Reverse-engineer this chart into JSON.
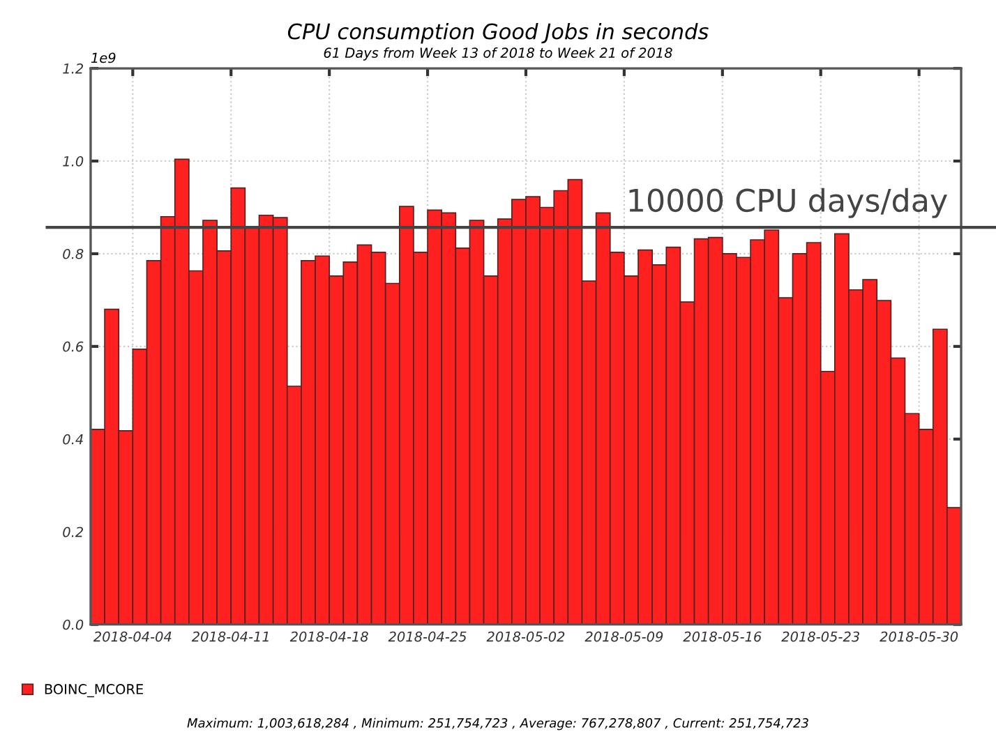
{
  "chart_data": {
    "type": "bar",
    "title": "CPU consumption Good Jobs in seconds",
    "subtitle": "61 Days from Week 13 of 2018 to Week 21 of 2018",
    "x": [
      "2018-04-01T12:00",
      "2018-04-02T12:00",
      "2018-04-03T12:00",
      "2018-04-04T12:00",
      "2018-04-05T12:00",
      "2018-04-06T12:00",
      "2018-04-07T12:00",
      "2018-04-08T12:00",
      "2018-04-09T12:00",
      "2018-04-10T12:00",
      "2018-04-11T12:00",
      "2018-04-12T12:00",
      "2018-04-13T12:00",
      "2018-04-14T12:00",
      "2018-04-15T12:00",
      "2018-04-16T12:00",
      "2018-04-17T12:00",
      "2018-04-18T12:00",
      "2018-04-19T12:00",
      "2018-04-20T12:00",
      "2018-04-21T12:00",
      "2018-04-22T12:00",
      "2018-04-23T12:00",
      "2018-04-24T12:00",
      "2018-04-25T12:00",
      "2018-04-26T12:00",
      "2018-04-27T12:00",
      "2018-04-28T12:00",
      "2018-04-29T12:00",
      "2018-04-30T12:00",
      "2018-05-01T12:00",
      "2018-05-02T12:00",
      "2018-05-03T12:00",
      "2018-05-04T12:00",
      "2018-05-05T12:00",
      "2018-05-06T12:00",
      "2018-05-07T12:00",
      "2018-05-08T12:00",
      "2018-05-09T12:00",
      "2018-05-10T12:00",
      "2018-05-11T12:00",
      "2018-05-12T12:00",
      "2018-05-13T12:00",
      "2018-05-14T12:00",
      "2018-05-15T12:00",
      "2018-05-16T12:00",
      "2018-05-17T12:00",
      "2018-05-18T12:00",
      "2018-05-19T12:00",
      "2018-05-20T12:00",
      "2018-05-21T12:00",
      "2018-05-22T12:00",
      "2018-05-23T12:00",
      "2018-05-24T12:00",
      "2018-05-25T12:00",
      "2018-05-26T12:00",
      "2018-05-27T12:00",
      "2018-05-28T12:00",
      "2018-05-29T12:00",
      "2018-05-30T12:00",
      "2018-05-31T12:00",
      "2018-06-01T12:00"
    ],
    "series": [
      {
        "name": "BOINC_MCORE",
        "color": "#ff2020",
        "values": [
          0.421,
          0.68,
          0.418,
          0.594,
          0.785,
          0.88,
          1.004,
          0.763,
          0.872,
          0.806,
          0.942,
          0.857,
          0.883,
          0.878,
          0.514,
          0.785,
          0.795,
          0.752,
          0.782,
          0.819,
          0.803,
          0.736,
          0.902,
          0.803,
          0.894,
          0.888,
          0.812,
          0.872,
          0.752,
          0.875,
          0.917,
          0.923,
          0.9,
          0.936,
          0.96,
          0.741,
          0.888,
          0.803,
          0.752,
          0.808,
          0.776,
          0.814,
          0.696,
          0.832,
          0.835,
          0.8,
          0.792,
          0.83,
          0.851,
          0.705,
          0.8,
          0.824,
          0.546,
          0.843,
          0.722,
          0.744,
          0.699,
          0.575,
          0.455,
          0.421,
          0.637,
          0.252
        ]
      }
    ],
    "xlim": [
      "2018-04-01",
      "2018-06-02"
    ],
    "xticks": [
      "2018-04-04",
      "2018-04-11",
      "2018-04-18",
      "2018-04-25",
      "2018-05-02",
      "2018-05-09",
      "2018-05-16",
      "2018-05-23",
      "2018-05-30"
    ],
    "ylim": [
      0,
      1.2
    ],
    "yticks": [
      {
        "value": 0,
        "label": "0.0"
      },
      0.2,
      0.4,
      0.6,
      0.8,
      {
        "value": 1,
        "label": "1.0"
      },
      1.2
    ],
    "ref_lines": [
      {
        "axis": "y",
        "value": 0.857,
        "label": "10000 CPU days/day",
        "color": "#444444"
      }
    ],
    "annotations": [
      "1e9",
      "Maximum: 1,003,618,284 , Minimum: 251,754,723 , Average: 767,278,807 , Current: 251,754,723"
    ],
    "grid": true,
    "legend": "bottom left"
  }
}
